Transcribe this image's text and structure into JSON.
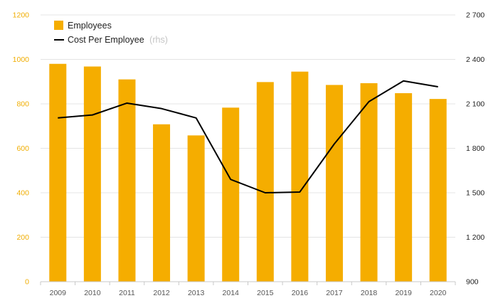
{
  "chart_data": {
    "type": "bar",
    "categories": [
      "2009",
      "2010",
      "2011",
      "2012",
      "2013",
      "2014",
      "2015",
      "2016",
      "2017",
      "2018",
      "2019",
      "2020"
    ],
    "series": [
      {
        "name": "Employees",
        "type": "bar",
        "axis": "left",
        "color": "#f5ad00",
        "values": [
          980,
          968,
          910,
          708,
          658,
          783,
          898,
          945,
          885,
          893,
          848,
          822
        ]
      },
      {
        "name": "Cost Per Employee",
        "name_suffix": "(rhs)",
        "type": "line",
        "axis": "right",
        "color": "#000000",
        "values": [
          2005,
          2025,
          2105,
          2068,
          2005,
          1590,
          1500,
          1505,
          1830,
          2115,
          2255,
          2215
        ]
      }
    ],
    "y_left": {
      "ylim": [
        0,
        1200
      ],
      "ticks": [
        0,
        200,
        400,
        600,
        800,
        1000,
        1200
      ],
      "tick_labels": [
        "0",
        "200",
        "400",
        "600",
        "800",
        "1000",
        "1200"
      ]
    },
    "y_right": {
      "ylim": [
        900,
        2700
      ],
      "ticks": [
        900,
        1200,
        1500,
        1800,
        2100,
        2400,
        2700
      ],
      "tick_labels": [
        "900",
        "1 200",
        "1 500",
        "1 800",
        "2 100",
        "2 400",
        "2 700"
      ]
    },
    "grid": true,
    "legend": "top-left",
    "title": "",
    "xlabel": "",
    "ylabel": ""
  }
}
